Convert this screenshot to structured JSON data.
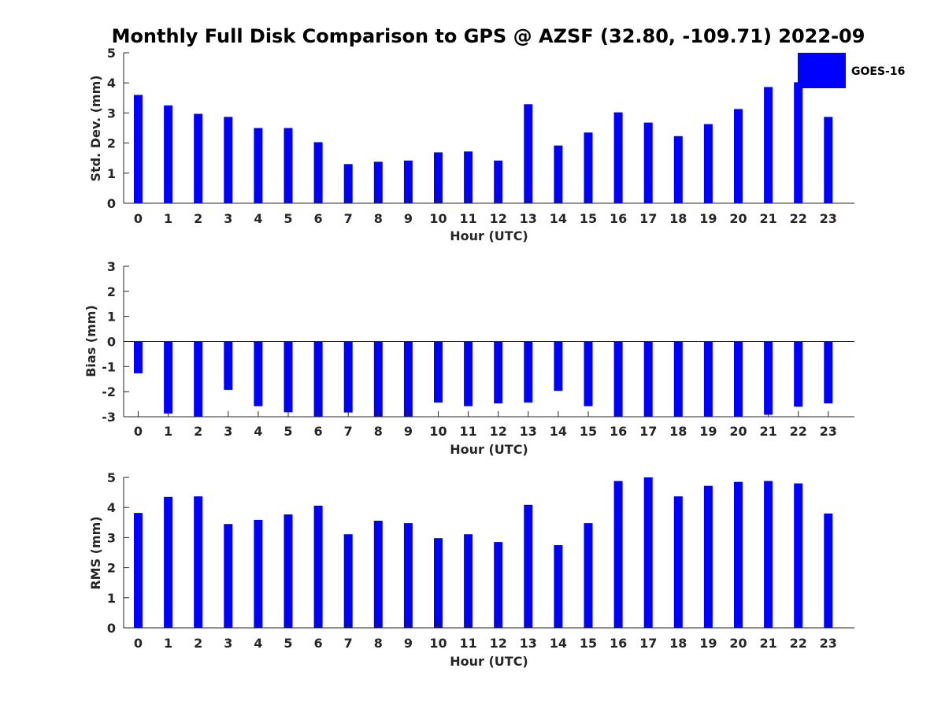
{
  "colors": {
    "bar": "#0000ff",
    "axis": "#262626",
    "background": "#ffffff"
  },
  "chart_data": {
    "type": "bar",
    "title": "Monthly Full Disk Comparison to GPS @ AZSF (32.80, -109.71) 2022-09",
    "legend": {
      "entries": [
        "GOES-16"
      ],
      "placement": "top-right"
    },
    "categories": [
      "0",
      "1",
      "2",
      "3",
      "4",
      "5",
      "6",
      "7",
      "8",
      "9",
      "10",
      "11",
      "12",
      "13",
      "14",
      "15",
      "16",
      "17",
      "18",
      "19",
      "20",
      "21",
      "22",
      "23"
    ],
    "panels": [
      {
        "key": "std",
        "ylabel": "Std. Dev. (mm)",
        "xlabel": "Hour (UTC)",
        "ylim": [
          0,
          5
        ],
        "yticks": [
          "0",
          "1",
          "2",
          "3",
          "4",
          "5"
        ],
        "series": [
          {
            "name": "GOES-16",
            "values": [
              3.6,
              3.25,
              2.97,
              2.87,
              2.5,
              2.5,
              2.03,
              1.3,
              1.38,
              1.42,
              1.69,
              1.72,
              1.42,
              3.29,
              1.92,
              2.35,
              3.02,
              2.68,
              2.23,
              2.63,
              3.13,
              3.86,
              4.02,
              2.87
            ]
          }
        ]
      },
      {
        "key": "bias",
        "ylabel": "Bias (mm)",
        "xlabel": "Hour (UTC)",
        "ylim": [
          -3,
          3
        ],
        "yticks": [
          "-3",
          "-2",
          "-1",
          "0",
          "1",
          "2",
          "3"
        ],
        "series": [
          {
            "name": "GOES-16",
            "values": [
              -1.27,
              -2.87,
              -3.0,
              -1.93,
              -2.58,
              -2.82,
              -3.0,
              -2.83,
              -3.0,
              -3.0,
              -2.43,
              -2.58,
              -2.47,
              -2.43,
              -1.97,
              -2.58,
              -3.0,
              -3.0,
              -3.0,
              -3.0,
              -3.0,
              -2.92,
              -2.6,
              -2.47
            ]
          }
        ]
      },
      {
        "key": "rms",
        "ylabel": "RMS (mm)",
        "xlabel": "Hour (UTC)",
        "ylim": [
          0,
          5
        ],
        "yticks": [
          "0",
          "1",
          "2",
          "3",
          "4",
          "5"
        ],
        "series": [
          {
            "name": "GOES-16",
            "values": [
              3.82,
              4.35,
              4.37,
              3.45,
              3.59,
              3.77,
              4.06,
              3.11,
              3.56,
              3.48,
              2.98,
              3.11,
              2.85,
              4.09,
              2.75,
              3.48,
              4.88,
              5.0,
              4.37,
              4.72,
              4.85,
              4.88,
              4.8,
              3.8
            ]
          }
        ]
      }
    ]
  }
}
